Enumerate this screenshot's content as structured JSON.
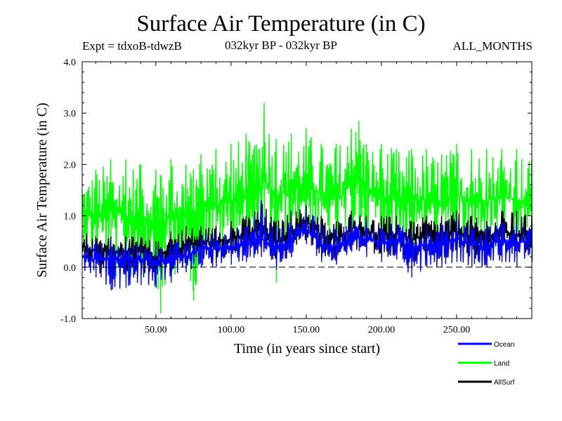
{
  "chart_data": {
    "type": "line",
    "title": "Surface Air Temperature (in C)",
    "subtitle_left": "Expt = tdxoB-tdwzB",
    "subtitle_center": "032kyr BP - 032kyr BP",
    "subtitle_right": "ALL_MONTHS",
    "xlabel": "Time (in years since start)",
    "ylabel": "Surface Air Temperature (in C)",
    "xlim": [
      1,
      300
    ],
    "ylim": [
      -1.0,
      4.0
    ],
    "xticks": [
      50,
      100,
      150,
      200,
      250
    ],
    "xtick_labels": [
      "50.00",
      "100.00",
      "150.00",
      "200.00",
      "250.00"
    ],
    "yticks": [
      -1.0,
      0.0,
      1.0,
      2.0,
      3.0,
      4.0
    ],
    "ytick_labels": [
      "-1.0",
      "0.0",
      "1.0",
      "2.0",
      "3.0",
      "4.0"
    ],
    "reference_line": {
      "y": 0.0,
      "style": "dashed"
    },
    "grid": false,
    "legend_position": "bottom-right, outside plot",
    "series": [
      {
        "name": "Land",
        "color": "#00ff00",
        "x": [
          1,
          10,
          20,
          30,
          40,
          50,
          53,
          60,
          70,
          75,
          80,
          90,
          100,
          110,
          115,
          122,
          130,
          140,
          150,
          160,
          170,
          180,
          185,
          190,
          200,
          210,
          220,
          230,
          240,
          250,
          260,
          270,
          280,
          290,
          300
        ],
        "y": [
          1.1,
          1.0,
          1.1,
          1.0,
          1.0,
          0.9,
          0.7,
          1.1,
          1.0,
          0.9,
          1.2,
          1.2,
          1.3,
          1.4,
          1.3,
          1.7,
          1.4,
          1.5,
          1.6,
          1.4,
          1.3,
          1.6,
          1.8,
          1.5,
          1.4,
          1.3,
          1.3,
          1.3,
          1.2,
          1.4,
          1.3,
          1.3,
          1.4,
          1.3,
          1.2
        ],
        "max": [
          1.7,
          1.9,
          2.1,
          2.1,
          2.0,
          1.9,
          1.8,
          2.1,
          2.0,
          1.9,
          2.2,
          2.3,
          2.4,
          2.6,
          2.3,
          3.2,
          2.5,
          2.6,
          2.7,
          2.4,
          2.4,
          2.7,
          2.85,
          2.4,
          2.4,
          2.3,
          2.3,
          2.3,
          2.2,
          2.4,
          2.3,
          2.3,
          2.3,
          2.3,
          2.1
        ],
        "min": [
          0.3,
          0.1,
          -0.3,
          -0.3,
          -0.2,
          -0.4,
          -0.9,
          -0.2,
          -0.1,
          -0.65,
          0.2,
          0.2,
          0.3,
          0.4,
          0.2,
          0.6,
          -0.3,
          0.5,
          0.6,
          0.4,
          0.2,
          0.6,
          0.8,
          0.5,
          0.4,
          0.3,
          0.3,
          0.3,
          0.2,
          0.3,
          0.0,
          0.4,
          0.4,
          0.3,
          0.3
        ]
      },
      {
        "name": "AllSurf",
        "color": "#000000",
        "x": [
          1,
          10,
          20,
          30,
          40,
          50,
          60,
          70,
          80,
          90,
          100,
          110,
          120,
          130,
          140,
          150,
          160,
          170,
          180,
          190,
          200,
          210,
          220,
          230,
          240,
          250,
          260,
          270,
          280,
          290,
          300
        ],
        "y": [
          0.4,
          0.3,
          0.3,
          0.3,
          0.3,
          0.2,
          0.35,
          0.4,
          0.5,
          0.5,
          0.55,
          0.6,
          0.75,
          0.5,
          0.7,
          0.9,
          0.6,
          0.55,
          0.75,
          0.7,
          0.6,
          0.65,
          0.55,
          0.6,
          0.6,
          0.7,
          0.6,
          0.55,
          0.7,
          0.6,
          0.7
        ],
        "max": [
          0.7,
          0.6,
          0.6,
          0.6,
          0.6,
          0.5,
          0.7,
          0.8,
          0.8,
          0.8,
          0.9,
          1.0,
          1.3,
          0.9,
          1.1,
          1.2,
          1.0,
          0.9,
          1.1,
          1.0,
          1.0,
          1.0,
          0.9,
          1.0,
          1.0,
          1.1,
          1.0,
          0.9,
          1.1,
          1.1,
          1.0
        ],
        "min": [
          0.0,
          -0.1,
          -0.3,
          -0.2,
          -0.1,
          -0.3,
          -0.1,
          0.0,
          0.1,
          0.1,
          0.2,
          0.2,
          0.3,
          0.0,
          0.2,
          0.5,
          0.2,
          0.1,
          0.3,
          0.3,
          0.2,
          0.2,
          0.0,
          0.1,
          0.1,
          0.2,
          0.1,
          0.1,
          0.2,
          0.2,
          0.2
        ]
      },
      {
        "name": "Ocean",
        "color": "#0000ff",
        "x": [
          1,
          10,
          20,
          30,
          40,
          50,
          60,
          70,
          80,
          90,
          100,
          110,
          120,
          130,
          140,
          150,
          160,
          170,
          180,
          190,
          200,
          210,
          220,
          230,
          240,
          250,
          260,
          270,
          280,
          290,
          300
        ],
        "y": [
          0.2,
          0.15,
          0.15,
          0.15,
          0.15,
          0.1,
          0.2,
          0.2,
          0.35,
          0.35,
          0.4,
          0.45,
          0.55,
          0.35,
          0.55,
          0.75,
          0.45,
          0.4,
          0.6,
          0.55,
          0.45,
          0.5,
          0.4,
          0.45,
          0.45,
          0.55,
          0.45,
          0.4,
          0.55,
          0.45,
          0.55
        ],
        "max": [
          0.5,
          0.5,
          0.5,
          0.45,
          0.45,
          0.4,
          0.5,
          0.5,
          0.65,
          0.7,
          0.75,
          0.8,
          1.3,
          0.8,
          0.9,
          1.15,
          0.85,
          0.75,
          0.95,
          0.9,
          0.8,
          0.85,
          0.75,
          0.8,
          0.85,
          0.95,
          0.85,
          0.8,
          0.9,
          0.85,
          0.8
        ],
        "min": [
          -0.15,
          -0.2,
          -0.45,
          -0.4,
          -0.35,
          -0.4,
          -0.3,
          -0.1,
          0.0,
          0.0,
          0.05,
          0.1,
          0.2,
          -0.05,
          0.2,
          0.45,
          0.1,
          0.05,
          0.3,
          0.2,
          0.1,
          0.15,
          -0.2,
          0.0,
          0.0,
          0.1,
          0.0,
          0.0,
          0.1,
          0.0,
          0.1
        ]
      }
    ],
    "legend": [
      {
        "label": "Ocean",
        "color": "#0000ff"
      },
      {
        "label": "Land",
        "color": "#00ff00"
      },
      {
        "label": "AllSurf",
        "color": "#000000"
      }
    ]
  }
}
